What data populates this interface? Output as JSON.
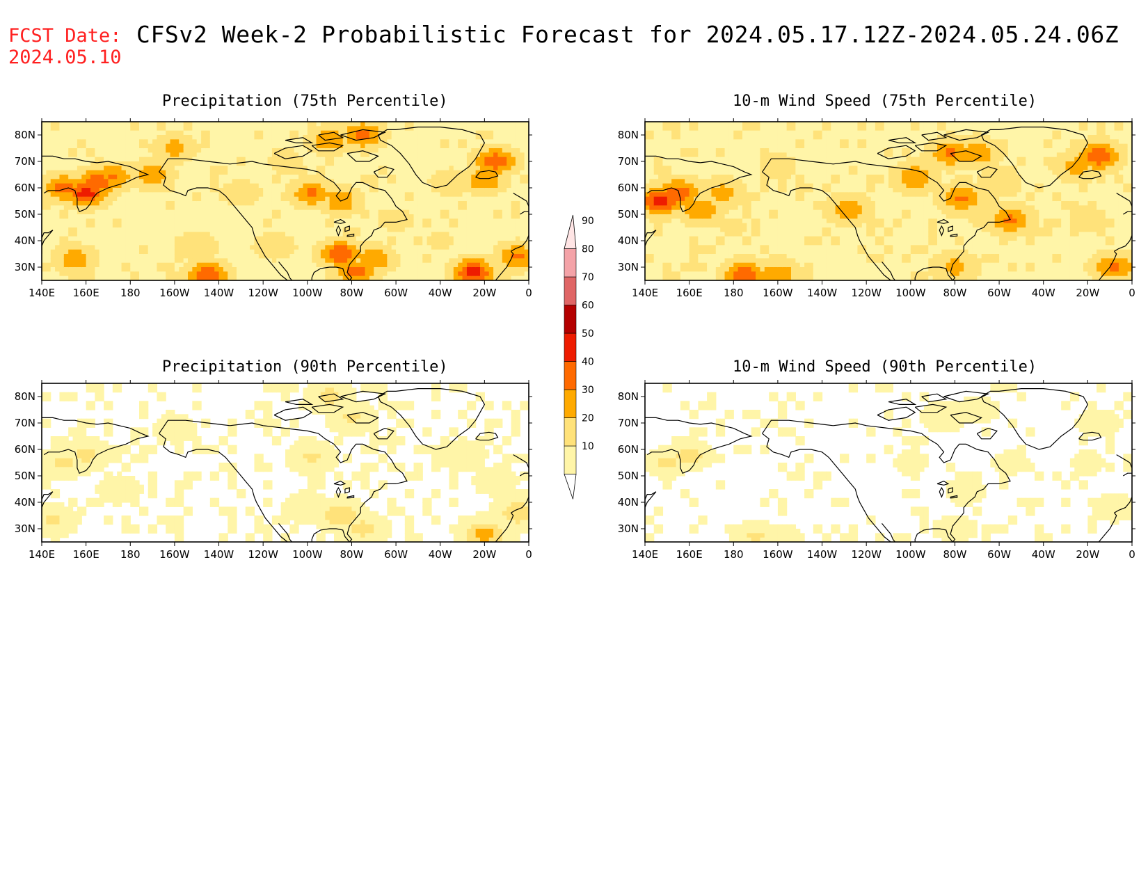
{
  "header": {
    "fcst_label_line1": "FCST Date:",
    "fcst_label_line2": "2024.05.10",
    "title": "CFSv2 Week-2 Probabilistic Forecast for 2024.05.17.12Z-2024.05.24.06Z",
    "title_color": "#000000",
    "fcst_color": "#ff2020"
  },
  "axes": {
    "lon_ticks": [
      "140E",
      "160E",
      "180",
      "160W",
      "140W",
      "120W",
      "100W",
      "80W",
      "60W",
      "40W",
      "20W",
      "0"
    ],
    "lat_ticks": [
      "80N",
      "70N",
      "60N",
      "50N",
      "40N",
      "30N"
    ],
    "lon_range_deg_east": [
      140,
      360
    ],
    "lat_range": [
      25,
      85
    ]
  },
  "colorbar": {
    "labels": [
      "90",
      "80",
      "70",
      "60",
      "50",
      "40",
      "30",
      "20",
      "10"
    ],
    "levels": [
      10,
      20,
      30,
      40,
      50,
      60,
      70,
      80,
      90
    ],
    "colors": [
      "#fff5a8",
      "#ffe27a",
      "#ffaa00",
      "#ff6a00",
      "#ee1c00",
      "#b40000",
      "#e06666",
      "#f4a3a8",
      "#ffe5e5"
    ],
    "orientation": "vertical"
  },
  "panels": [
    {
      "id": "precip-75",
      "title": "Precipitation (75th Percentile)",
      "variable": "Precipitation",
      "percentile": "75th",
      "hotspots": [
        {
          "lon": 160,
          "lat": 58,
          "p": 55
        },
        {
          "lon": 165,
          "lat": 62,
          "p": 50
        },
        {
          "lon": 150,
          "lat": 60,
          "p": 45
        },
        {
          "lon": 172,
          "lat": 64,
          "p": 42
        },
        {
          "lon": 190,
          "lat": 65,
          "p": 38
        },
        {
          "lon": 200,
          "lat": 75,
          "p": 35
        },
        {
          "lon": 215,
          "lat": 27,
          "p": 50
        },
        {
          "lon": 155,
          "lat": 33,
          "p": 38
        },
        {
          "lon": 210,
          "lat": 38,
          "p": 30
        },
        {
          "lon": 275,
          "lat": 35,
          "p": 50
        },
        {
          "lon": 290,
          "lat": 33,
          "p": 40
        },
        {
          "lon": 282,
          "lat": 28,
          "p": 45
        },
        {
          "lon": 262,
          "lat": 58,
          "p": 42
        },
        {
          "lon": 275,
          "lat": 55,
          "p": 38
        },
        {
          "lon": 285,
          "lat": 80,
          "p": 45
        },
        {
          "lon": 270,
          "lat": 78,
          "p": 40
        },
        {
          "lon": 345,
          "lat": 70,
          "p": 48
        },
        {
          "lon": 340,
          "lat": 63,
          "p": 40
        },
        {
          "lon": 325,
          "lat": 62,
          "p": 30
        },
        {
          "lon": 335,
          "lat": 28,
          "p": 55
        },
        {
          "lon": 355,
          "lat": 34,
          "p": 42
        },
        {
          "lon": 245,
          "lat": 38,
          "p": 30
        },
        {
          "lon": 230,
          "lat": 58,
          "p": 28
        },
        {
          "lon": 300,
          "lat": 48,
          "p": 25
        },
        {
          "lon": 320,
          "lat": 40,
          "p": 22
        },
        {
          "lon": 175,
          "lat": 45,
          "p": 20
        },
        {
          "lon": 250,
          "lat": 70,
          "p": 25
        }
      ],
      "background_p": 16
    },
    {
      "id": "wind-75",
      "title": "10-m Wind Speed (75th Percentile)",
      "variable": "10-m Wind Speed",
      "percentile": "75th",
      "hotspots": [
        {
          "lon": 147,
          "lat": 55,
          "p": 55
        },
        {
          "lon": 155,
          "lat": 58,
          "p": 48
        },
        {
          "lon": 165,
          "lat": 52,
          "p": 40
        },
        {
          "lon": 175,
          "lat": 58,
          "p": 35
        },
        {
          "lon": 185,
          "lat": 27,
          "p": 48
        },
        {
          "lon": 200,
          "lat": 27,
          "p": 40
        },
        {
          "lon": 232,
          "lat": 52,
          "p": 38
        },
        {
          "lon": 278,
          "lat": 73,
          "p": 42
        },
        {
          "lon": 290,
          "lat": 73,
          "p": 40
        },
        {
          "lon": 262,
          "lat": 64,
          "p": 40
        },
        {
          "lon": 283,
          "lat": 56,
          "p": 42
        },
        {
          "lon": 305,
          "lat": 48,
          "p": 42
        },
        {
          "lon": 295,
          "lat": 50,
          "p": 30
        },
        {
          "lon": 345,
          "lat": 72,
          "p": 50
        },
        {
          "lon": 335,
          "lat": 68,
          "p": 35
        },
        {
          "lon": 300,
          "lat": 62,
          "p": 30
        },
        {
          "lon": 280,
          "lat": 30,
          "p": 35
        },
        {
          "lon": 352,
          "lat": 30,
          "p": 42
        },
        {
          "lon": 340,
          "lat": 48,
          "p": 25
        },
        {
          "lon": 200,
          "lat": 68,
          "p": 25
        },
        {
          "lon": 180,
          "lat": 45,
          "p": 22
        }
      ],
      "background_p": 17
    },
    {
      "id": "precip-90",
      "title": "Precipitation (90th Percentile)",
      "variable": "Precipitation",
      "percentile": "90th",
      "hotspots": [
        {
          "lon": 160,
          "lat": 58,
          "p": 24
        },
        {
          "lon": 150,
          "lat": 55,
          "p": 22
        },
        {
          "lon": 145,
          "lat": 33,
          "p": 22
        },
        {
          "lon": 275,
          "lat": 35,
          "p": 28
        },
        {
          "lon": 285,
          "lat": 30,
          "p": 24
        },
        {
          "lon": 340,
          "lat": 28,
          "p": 35
        },
        {
          "lon": 355,
          "lat": 36,
          "p": 28
        },
        {
          "lon": 270,
          "lat": 80,
          "p": 24
        },
        {
          "lon": 280,
          "lat": 72,
          "p": 22
        },
        {
          "lon": 262,
          "lat": 57,
          "p": 22
        },
        {
          "lon": 260,
          "lat": 38,
          "p": 20
        },
        {
          "lon": 330,
          "lat": 58,
          "p": 18
        },
        {
          "lon": 345,
          "lat": 48,
          "p": 16
        },
        {
          "lon": 200,
          "lat": 68,
          "p": 15
        },
        {
          "lon": 175,
          "lat": 45,
          "p": 16
        }
      ],
      "background_p": 8
    },
    {
      "id": "wind-90",
      "title": "10-m Wind Speed (90th Percentile)",
      "variable": "10-m Wind Speed",
      "percentile": "90th",
      "hotspots": [
        {
          "lon": 150,
          "lat": 55,
          "p": 22
        },
        {
          "lon": 160,
          "lat": 58,
          "p": 25
        },
        {
          "lon": 190,
          "lat": 27,
          "p": 22
        },
        {
          "lon": 200,
          "lat": 26,
          "p": 20
        },
        {
          "lon": 280,
          "lat": 30,
          "p": 18
        },
        {
          "lon": 285,
          "lat": 44,
          "p": 16
        },
        {
          "lon": 275,
          "lat": 72,
          "p": 20
        },
        {
          "lon": 290,
          "lat": 75,
          "p": 18
        },
        {
          "lon": 345,
          "lat": 70,
          "p": 18
        },
        {
          "lon": 352,
          "lat": 38,
          "p": 18
        },
        {
          "lon": 340,
          "lat": 55,
          "p": 14
        },
        {
          "lon": 305,
          "lat": 55,
          "p": 14
        },
        {
          "lon": 260,
          "lat": 55,
          "p": 14
        }
      ],
      "background_p": 7
    }
  ]
}
